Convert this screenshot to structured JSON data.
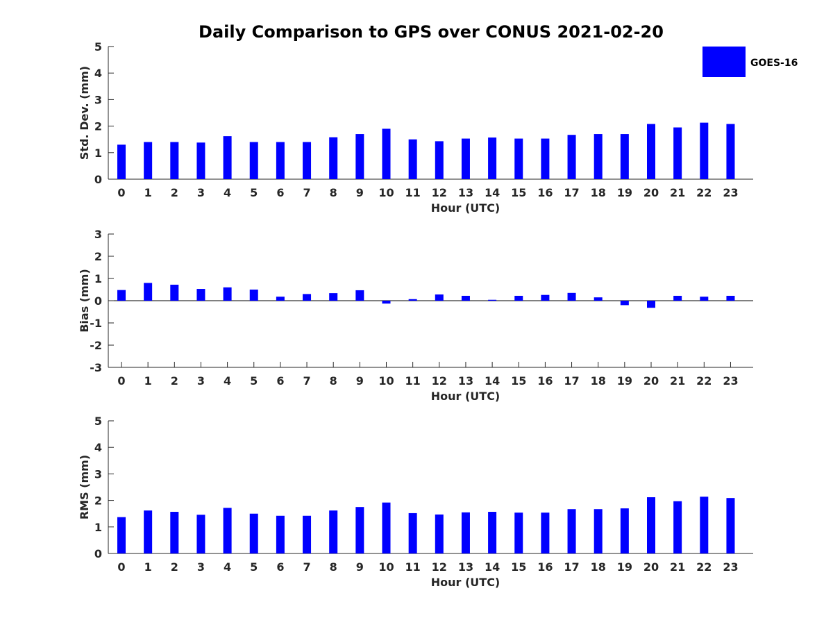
{
  "title": "Daily Comparison to GPS over CONUS 2021-02-20",
  "legend": {
    "label": "GOES-16",
    "color": "#0000ff",
    "placement": "top-right"
  },
  "chart_data": [
    {
      "type": "bar",
      "id": "stddev",
      "ylabel": "Std. Dev. (mm)",
      "xlabel": "Hour (UTC)",
      "ylim": [
        0,
        5
      ],
      "yticks": [
        0,
        1,
        2,
        3,
        4,
        5
      ],
      "categories": [
        "0",
        "1",
        "2",
        "3",
        "4",
        "5",
        "6",
        "7",
        "8",
        "9",
        "10",
        "11",
        "12",
        "13",
        "14",
        "15",
        "16",
        "17",
        "18",
        "19",
        "20",
        "21",
        "22",
        "23"
      ],
      "series": [
        {
          "name": "GOES-16",
          "values": [
            1.3,
            1.4,
            1.4,
            1.38,
            1.62,
            1.4,
            1.4,
            1.4,
            1.58,
            1.7,
            1.9,
            1.5,
            1.43,
            1.53,
            1.57,
            1.53,
            1.53,
            1.67,
            1.7,
            1.7,
            2.08,
            1.95,
            2.13,
            2.08
          ]
        }
      ],
      "color": "#0000ff"
    },
    {
      "type": "bar",
      "id": "bias",
      "ylabel": "Bias (mm)",
      "xlabel": "Hour (UTC)",
      "ylim": [
        -3,
        3
      ],
      "yticks": [
        -3,
        -2,
        -1,
        0,
        1,
        2,
        3
      ],
      "categories": [
        "0",
        "1",
        "2",
        "3",
        "4",
        "5",
        "6",
        "7",
        "8",
        "9",
        "10",
        "11",
        "12",
        "13",
        "14",
        "15",
        "16",
        "17",
        "18",
        "19",
        "20",
        "21",
        "22",
        "23"
      ],
      "series": [
        {
          "name": "GOES-16",
          "values": [
            0.48,
            0.8,
            0.72,
            0.53,
            0.6,
            0.5,
            0.18,
            0.3,
            0.34,
            0.47,
            -0.13,
            0.07,
            0.28,
            0.22,
            0.04,
            0.22,
            0.26,
            0.35,
            0.15,
            -0.2,
            -0.32,
            0.22,
            0.18,
            0.22
          ]
        }
      ],
      "color": "#0000ff"
    },
    {
      "type": "bar",
      "id": "rms",
      "ylabel": "RMS (mm)",
      "xlabel": "Hour (UTC)",
      "ylim": [
        0,
        5
      ],
      "yticks": [
        0,
        1,
        2,
        3,
        4,
        5
      ],
      "categories": [
        "0",
        "1",
        "2",
        "3",
        "4",
        "5",
        "6",
        "7",
        "8",
        "9",
        "10",
        "11",
        "12",
        "13",
        "14",
        "15",
        "16",
        "17",
        "18",
        "19",
        "20",
        "21",
        "22",
        "23"
      ],
      "series": [
        {
          "name": "GOES-16",
          "values": [
            1.37,
            1.62,
            1.57,
            1.46,
            1.72,
            1.5,
            1.42,
            1.42,
            1.62,
            1.75,
            1.92,
            1.52,
            1.47,
            1.55,
            1.57,
            1.54,
            1.54,
            1.67,
            1.67,
            1.7,
            2.12,
            1.97,
            2.14,
            2.09
          ]
        }
      ],
      "color": "#0000ff"
    }
  ]
}
